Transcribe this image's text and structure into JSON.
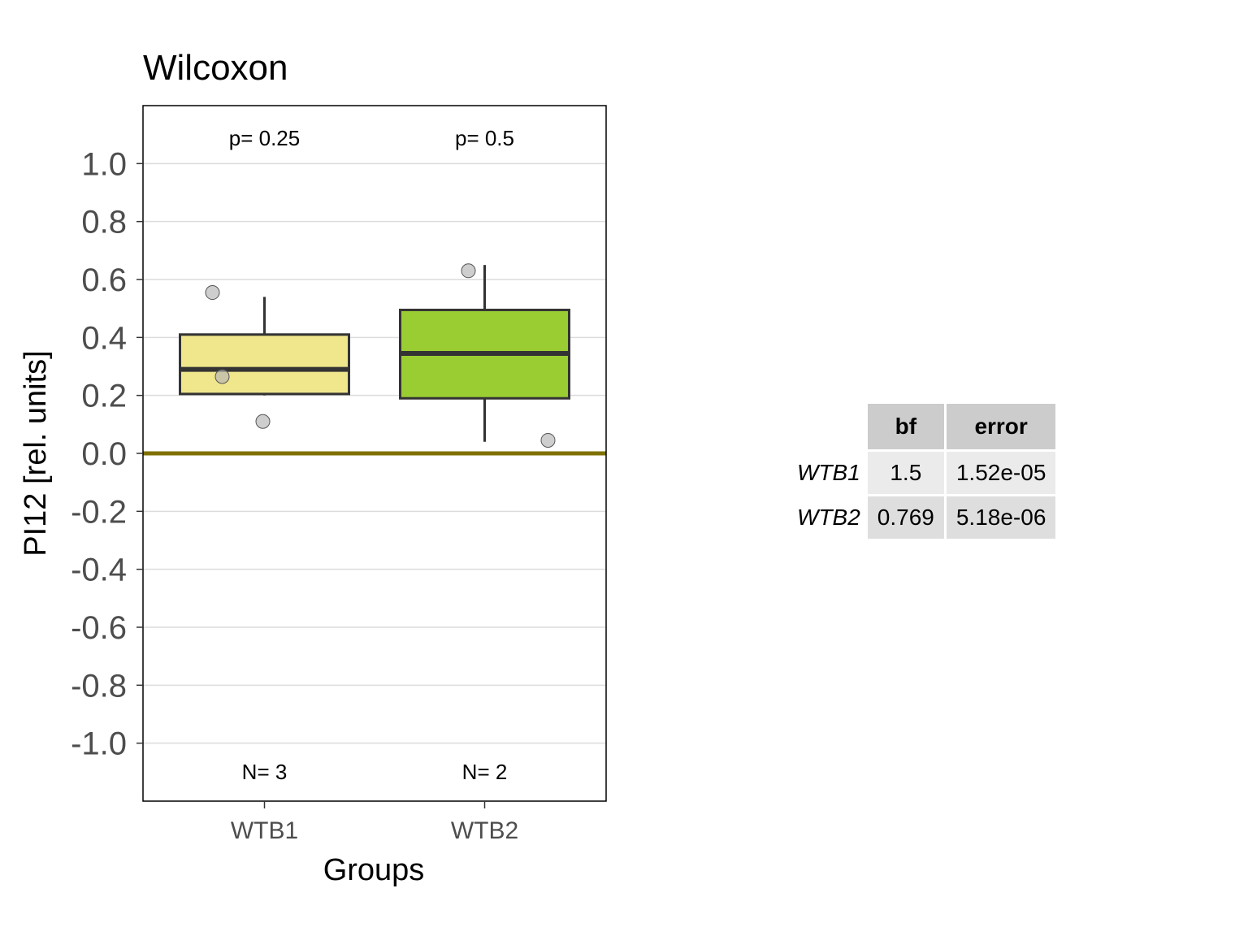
{
  "chart_data": {
    "type": "box",
    "title": "Wilcoxon",
    "xlabel": "Groups",
    "ylabel": "PI12 [rel. units]",
    "ylim": [
      -1.2,
      1.2
    ],
    "yticks": [
      "1.0",
      "0.8",
      "0.6",
      "0.4",
      "0.2",
      "0.0",
      "-0.2",
      "-0.4",
      "-0.6",
      "-0.8",
      "-1.0"
    ],
    "ytick_values": [
      1.0,
      0.8,
      0.6,
      0.4,
      0.2,
      0.0,
      -0.2,
      -0.4,
      -0.6,
      -0.8,
      -1.0
    ],
    "reference_line": 0.0,
    "reference_line_color": "#7f7000",
    "grid": true,
    "groups": [
      {
        "name": "WTB1",
        "color": "#f0e68c",
        "whisker_low": 0.2,
        "q1": 0.205,
        "median": 0.29,
        "q3": 0.41,
        "whisker_high": 0.54,
        "points": [
          0.555,
          0.265,
          0.11
        ],
        "p_label": "p= 0.25",
        "n_label": "N= 3"
      },
      {
        "name": "WTB2",
        "color": "#9acd32",
        "whisker_low": 0.04,
        "q1": 0.19,
        "median": 0.345,
        "q3": 0.495,
        "whisker_high": 0.65,
        "points": [
          0.63,
          0.045
        ],
        "p_label": "p= 0.5",
        "n_label": "N= 2"
      }
    ]
  },
  "table": {
    "headers": [
      "bf",
      "error"
    ],
    "rows": [
      {
        "name": "WTB1",
        "bf": "1.5",
        "error": "1.52e-05"
      },
      {
        "name": "WTB2",
        "bf": "0.769",
        "error": "5.18e-06"
      }
    ]
  }
}
